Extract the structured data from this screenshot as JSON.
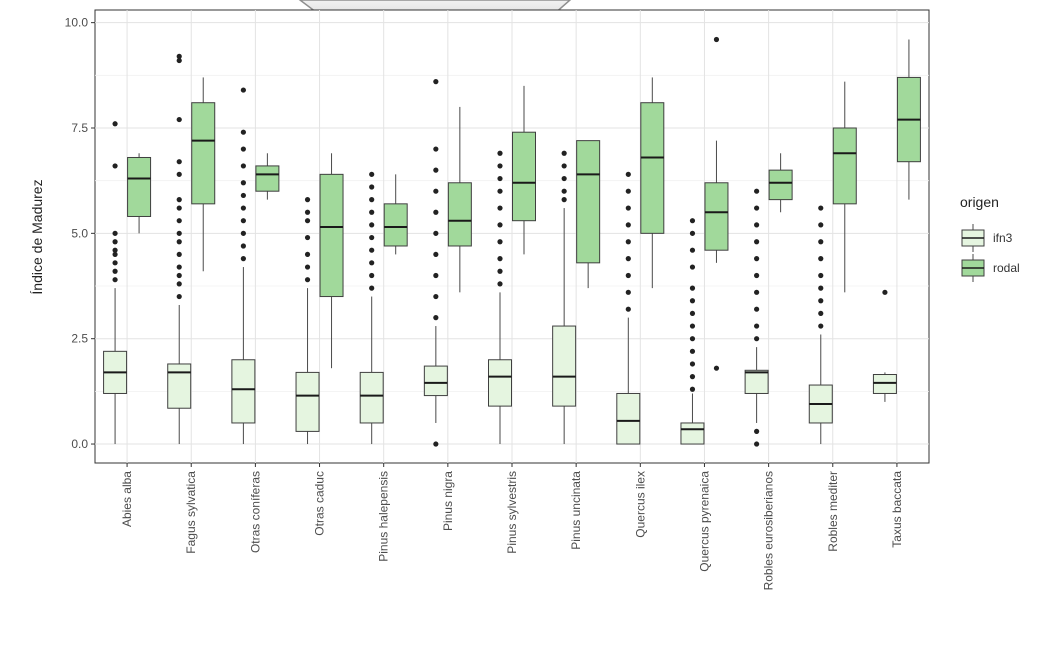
{
  "chart_data": {
    "type": "boxplot",
    "ylabel": "Índice de Madurez",
    "xlabel": "",
    "ylim": [
      -0.45,
      10.3
    ],
    "yticks": [
      "0.0",
      "2.5",
      "5.0",
      "7.5",
      "10.0"
    ],
    "grid": true,
    "legend": {
      "title": "origen",
      "position": "right"
    },
    "categories": [
      "Abies alba",
      "Fagus sylvatica",
      "Otras coníferas",
      "Otras caduc",
      "Pinus halepensis",
      "Pinus nigra",
      "Pinus sylvestris",
      "Pinus uncinata",
      "Quercus ilex",
      "Quercus pyrenaica",
      "Robles eurosiberianos",
      "Robles mediter",
      "Taxus baccata"
    ],
    "series": [
      {
        "name": "ifn3",
        "color": "#e5f5e0",
        "boxes": [
          {
            "min": 0.0,
            "q1": 1.2,
            "median": 1.7,
            "q3": 2.2,
            "max": 3.7,
            "outliers": [
              3.9,
              4.1,
              4.3,
              4.5,
              4.6,
              4.8,
              5.0,
              6.6,
              7.6
            ]
          },
          {
            "min": 0.0,
            "q1": 0.85,
            "median": 1.7,
            "q3": 1.9,
            "max": 3.3,
            "outliers": [
              3.5,
              3.8,
              4.0,
              4.2,
              4.5,
              4.8,
              5.0,
              5.3,
              5.6,
              5.8,
              6.4,
              6.7,
              7.7,
              9.1,
              9.2
            ]
          },
          {
            "min": 0.0,
            "q1": 0.5,
            "median": 1.3,
            "q3": 2.0,
            "max": 4.2,
            "outliers": [
              4.4,
              4.7,
              5.0,
              5.3,
              5.6,
              5.9,
              6.2,
              6.6,
              7.0,
              7.4,
              8.4
            ]
          },
          {
            "min": 0.0,
            "q1": 0.3,
            "median": 1.15,
            "q3": 1.7,
            "max": 3.7,
            "outliers": [
              3.9,
              4.2,
              4.5,
              4.9,
              5.3,
              5.5,
              5.8
            ]
          },
          {
            "min": 0.0,
            "q1": 0.5,
            "median": 1.15,
            "q3": 1.7,
            "max": 3.5,
            "outliers": [
              3.7,
              4.0,
              4.3,
              4.6,
              4.9,
              5.2,
              5.5,
              5.8,
              6.1,
              6.4
            ]
          },
          {
            "min": 0.5,
            "q1": 1.15,
            "median": 1.45,
            "q3": 1.85,
            "max": 2.8,
            "outliers": [
              0.0,
              3.0,
              3.5,
              4.0,
              4.5,
              5.0,
              5.5,
              6.0,
              6.5,
              7.0,
              8.6
            ]
          },
          {
            "min": 0.0,
            "q1": 0.9,
            "median": 1.6,
            "q3": 2.0,
            "max": 3.6,
            "outliers": [
              3.8,
              4.1,
              4.4,
              4.8,
              5.2,
              5.6,
              6.0,
              6.3,
              6.6,
              6.9
            ]
          },
          {
            "min": 0.0,
            "q1": 0.9,
            "median": 1.6,
            "q3": 2.8,
            "max": 5.6,
            "outliers": [
              5.8,
              6.0,
              6.3,
              6.6,
              6.9
            ]
          },
          {
            "min": 0.0,
            "q1": 0.0,
            "median": 0.55,
            "q3": 1.2,
            "max": 3.0,
            "outliers": [
              3.2,
              3.6,
              4.0,
              4.4,
              4.8,
              5.2,
              5.6,
              6.0,
              6.4
            ]
          },
          {
            "min": 0.0,
            "q1": 0.0,
            "median": 0.35,
            "q3": 0.5,
            "max": 1.2,
            "outliers": [
              1.3,
              1.6,
              1.9,
              2.2,
              2.5,
              2.8,
              3.1,
              3.4,
              3.7,
              4.2,
              4.6,
              5.0,
              5.3
            ]
          },
          {
            "min": 0.5,
            "q1": 1.2,
            "median": 1.7,
            "q3": 1.75,
            "max": 2.3,
            "outliers": [
              0.0,
              0.3,
              2.5,
              2.8,
              3.2,
              3.6,
              4.0,
              4.4,
              4.8,
              5.2,
              5.6,
              6.0
            ]
          },
          {
            "min": 0.0,
            "q1": 0.5,
            "median": 0.95,
            "q3": 1.4,
            "max": 2.6,
            "outliers": [
              2.8,
              3.1,
              3.4,
              3.7,
              4.0,
              4.4,
              4.8,
              5.2,
              5.6
            ]
          },
          {
            "min": 1.0,
            "q1": 1.2,
            "median": 1.45,
            "q3": 1.65,
            "max": 1.7,
            "outliers": [
              3.6
            ]
          }
        ]
      },
      {
        "name": "rodal",
        "color": "#a1d99b",
        "boxes": [
          {
            "min": 5.0,
            "q1": 5.4,
            "median": 6.3,
            "q3": 6.8,
            "max": 6.9,
            "outliers": []
          },
          {
            "min": 4.1,
            "q1": 5.7,
            "median": 7.2,
            "q3": 8.1,
            "max": 8.7,
            "outliers": []
          },
          {
            "min": 5.8,
            "q1": 6.0,
            "median": 6.4,
            "q3": 6.6,
            "max": 6.9,
            "outliers": []
          },
          {
            "min": 1.8,
            "q1": 3.5,
            "median": 5.15,
            "q3": 6.4,
            "max": 6.9,
            "outliers": []
          },
          {
            "min": 4.5,
            "q1": 4.7,
            "median": 5.15,
            "q3": 5.7,
            "max": 6.4,
            "outliers": []
          },
          {
            "min": 3.6,
            "q1": 4.7,
            "median": 5.3,
            "q3": 6.2,
            "max": 8.0,
            "outliers": []
          },
          {
            "min": 4.5,
            "q1": 5.3,
            "median": 6.2,
            "q3": 7.4,
            "max": 8.5,
            "outliers": []
          },
          {
            "min": 3.7,
            "q1": 4.3,
            "median": 6.4,
            "q3": 7.2,
            "max": 7.2,
            "outliers": []
          },
          {
            "min": 3.7,
            "q1": 5.0,
            "median": 6.8,
            "q3": 8.1,
            "max": 8.7,
            "outliers": []
          },
          {
            "min": 4.3,
            "q1": 4.6,
            "median": 5.5,
            "q3": 6.2,
            "max": 7.2,
            "outliers": [
              1.8,
              9.6
            ]
          },
          {
            "min": 5.5,
            "q1": 5.8,
            "median": 6.2,
            "q3": 6.5,
            "max": 6.9,
            "outliers": []
          },
          {
            "min": 3.6,
            "q1": 5.7,
            "median": 6.9,
            "q3": 7.5,
            "max": 8.6,
            "outliers": []
          },
          {
            "min": 5.8,
            "q1": 6.7,
            "median": 7.7,
            "q3": 8.7,
            "max": 9.6,
            "outliers": []
          }
        ]
      }
    ]
  }
}
